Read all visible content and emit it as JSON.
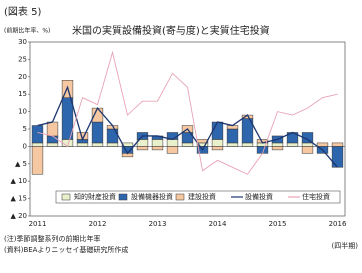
{
  "chart_data": {
    "type": "bar",
    "header": "(図表 5)",
    "title": "米国の実質設備投資(寄与度)と実質住宅投資",
    "y_unit": "(前期比年率、%)",
    "note": "(注)季節調整系列の前期比年率",
    "source": "(資料)BEAよりニッセイ基礎研究所作成",
    "x_unit": "(四半期)",
    "categories": [
      "2011",
      null,
      null,
      null,
      "2012",
      null,
      null,
      null,
      "2013",
      null,
      null,
      null,
      "2014",
      null,
      null,
      null,
      "2015",
      null,
      null,
      null,
      "2016"
    ],
    "ylim": [
      -20,
      30
    ],
    "yticks": [
      {
        "value": -20,
        "label": "▲ 20"
      },
      {
        "value": -15,
        "label": "▲ 15"
      },
      {
        "value": -10,
        "label": "▲ 10"
      },
      {
        "value": -5,
        "label": "▲ 5"
      },
      0,
      5,
      10,
      15,
      20,
      25,
      30
    ],
    "series": [
      {
        "name": "知的財産投資",
        "type": "bar",
        "color": "#e8f0cc",
        "values": [
          1,
          1,
          2,
          1,
          1,
          1,
          1,
          2,
          2,
          2,
          1,
          1,
          2,
          1,
          1,
          1,
          1,
          1,
          1,
          0,
          0
        ]
      },
      {
        "name": "設備機器投資",
        "type": "bar",
        "color": "#2e66ae",
        "values": [
          5,
          2,
          12,
          1,
          6,
          4,
          -2,
          2,
          1,
          2,
          3,
          -2,
          5,
          4,
          7,
          -2,
          2,
          3,
          3,
          -2,
          -6
        ]
      },
      {
        "name": "建設投資",
        "type": "bar",
        "color": "#f6c8a2",
        "values": [
          -8,
          4,
          5,
          2,
          4,
          1,
          -1,
          -1,
          -1,
          -2,
          2,
          1,
          -1,
          1,
          1,
          1,
          -1,
          0,
          -2,
          1,
          1
        ]
      },
      {
        "name": "設備投資",
        "type": "line",
        "color": "#1c3670",
        "values": [
          6,
          7,
          17,
          2,
          11,
          6,
          -2,
          3,
          3,
          2,
          5,
          -1,
          7,
          6,
          9,
          1,
          2,
          4,
          2,
          -1,
          -6
        ]
      },
      {
        "name": "住宅投資",
        "type": "line",
        "color": "#e8a3b4",
        "values": [
          4,
          3,
          0,
          14,
          12,
          27,
          9,
          13,
          13,
          21,
          17,
          -7,
          -4,
          -6,
          -8,
          -2,
          10,
          9,
          11,
          14,
          15
        ]
      }
    ]
  }
}
